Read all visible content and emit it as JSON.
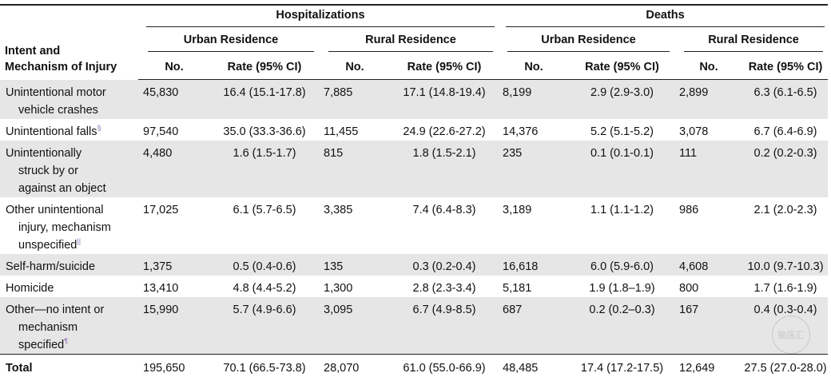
{
  "header": {
    "corner_line1": "Intent and",
    "corner_line2": "Mechanism of Injury",
    "group_hosp": "Hospitalizations",
    "group_deaths": "Deaths",
    "urban": "Urban Residence",
    "rural": "Rural Residence",
    "col_no": "No.",
    "col_rate": "Rate (95% CI)"
  },
  "rows": [
    {
      "lines": [
        "Unintentional motor",
        "vehicle crashes"
      ],
      "sup": "",
      "shade": true,
      "h_u_no": "45,830",
      "h_u_rate": "16.4 (15.1-17.8)",
      "h_r_no": "7,885",
      "h_r_rate": "17.1 (14.8-19.4)",
      "d_u_no": "8,199",
      "d_u_rate": "2.9 (2.9-3.0)",
      "d_r_no": "2,899",
      "d_r_rate": "6.3 (6.1-6.5)"
    },
    {
      "lines": [
        "Unintentional falls"
      ],
      "sup": "§",
      "shade": false,
      "h_u_no": "97,540",
      "h_u_rate": "35.0 (33.3-36.6)",
      "h_r_no": "11,455",
      "h_r_rate": "24.9 (22.6-27.2)",
      "d_u_no": "14,376",
      "d_u_rate": "5.2 (5.1-5.2)",
      "d_r_no": "3,078",
      "d_r_rate": "6.7 (6.4-6.9)"
    },
    {
      "lines": [
        "Unintentionally",
        "struck by or",
        "against an object"
      ],
      "sup": "",
      "shade": true,
      "h_u_no": "4,480",
      "h_u_rate": "1.6 (1.5-1.7)",
      "h_r_no": "815",
      "h_r_rate": "1.8 (1.5-2.1)",
      "d_u_no": "235",
      "d_u_rate": "0.1 (0.1-0.1)",
      "d_r_no": "111",
      "d_r_rate": "0.2 (0.2-0.3)"
    },
    {
      "lines": [
        "Other unintentional",
        "injury, mechanism",
        "unspecified"
      ],
      "sup": "||",
      "shade": false,
      "h_u_no": "17,025",
      "h_u_rate": "6.1 (5.7-6.5)",
      "h_r_no": "3,385",
      "h_r_rate": "7.4 (6.4-8.3)",
      "d_u_no": "3,189",
      "d_u_rate": "1.1 (1.1-1.2)",
      "d_r_no": "986",
      "d_r_rate": "2.1 (2.0-2.3)"
    },
    {
      "lines": [
        "Self-harm/suicide"
      ],
      "sup": "",
      "shade": true,
      "h_u_no": "1,375",
      "h_u_rate": "0.5 (0.4-0.6)",
      "h_r_no": "135",
      "h_r_rate": "0.3 (0.2-0.4)",
      "d_u_no": "16,618",
      "d_u_rate": "6.0 (5.9-6.0)",
      "d_r_no": "4,608",
      "d_r_rate": "10.0 (9.7-10.3)"
    },
    {
      "lines": [
        "Homicide"
      ],
      "sup": "",
      "shade": false,
      "h_u_no": "13,410",
      "h_u_rate": "4.8 (4.4-5.2)",
      "h_r_no": "1,300",
      "h_r_rate": "2.8 (2.3-3.4)",
      "d_u_no": "5,181",
      "d_u_rate": "1.9 (1.8–1.9)",
      "d_r_no": "800",
      "d_r_rate": "1.7 (1.6-1.9)"
    },
    {
      "lines": [
        "Other—no intent or",
        "mechanism",
        "specified"
      ],
      "sup": "¶",
      "shade": true,
      "h_u_no": "15,990",
      "h_u_rate": "5.7 (4.9-6.6)",
      "h_r_no": "3,095",
      "h_r_rate": "6.7 (4.9-8.5)",
      "d_u_no": "687",
      "d_u_rate": "0.2 (0.2–0.3)",
      "d_r_no": "167",
      "d_r_rate": "0.4 (0.3-0.4)"
    }
  ],
  "total": {
    "label": "Total",
    "h_u_no": "195,650",
    "h_u_rate": "70.1 (66.5-73.8)",
    "h_r_no": "28,070",
    "h_r_rate": "61.0 (55.0-66.9)",
    "d_u_no": "48,485",
    "d_u_rate": "17.4 (17.2-17.5)",
    "d_r_no": "12,649",
    "d_r_rate": "27.5 (27.0-28.0)"
  },
  "watermark": "脑医汇"
}
